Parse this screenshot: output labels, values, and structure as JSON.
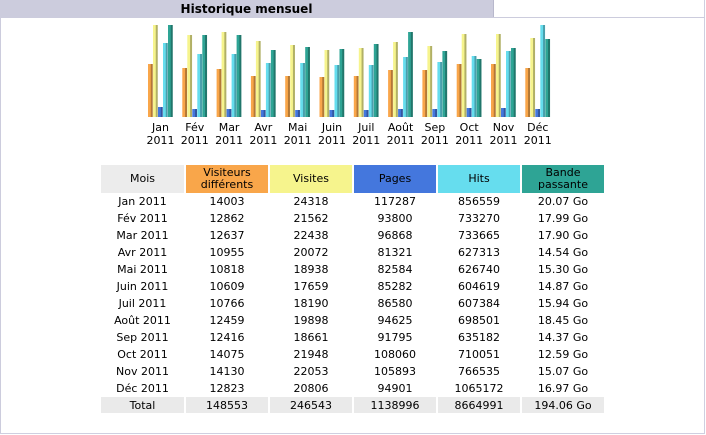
{
  "title": "Historique mensuel",
  "colors": {
    "visitors": "#f9a64a",
    "visits": "#f6f48d",
    "pages": "#4477dd",
    "hits": "#66ddee",
    "bandwidth": "#2ea495",
    "mois_header": "#ececec"
  },
  "table": {
    "headers": {
      "mois": "Mois",
      "visitors_l1": "Visiteurs",
      "visitors_l2": "différents",
      "visits": "Visites",
      "pages": "Pages",
      "hits": "Hits",
      "bandwidth_l1": "Bande",
      "bandwidth_l2": "passante"
    },
    "rows": [
      {
        "mois": "Jan 2011",
        "visitors": "14003",
        "visits": "24318",
        "pages": "117287",
        "hits": "856559",
        "bandwidth": "20.07 Go"
      },
      {
        "mois": "Fév 2011",
        "visitors": "12862",
        "visits": "21562",
        "pages": "93800",
        "hits": "733270",
        "bandwidth": "17.99 Go"
      },
      {
        "mois": "Mar 2011",
        "visitors": "12637",
        "visits": "22438",
        "pages": "96868",
        "hits": "733665",
        "bandwidth": "17.90 Go"
      },
      {
        "mois": "Avr 2011",
        "visitors": "10955",
        "visits": "20072",
        "pages": "81321",
        "hits": "627313",
        "bandwidth": "14.54 Go"
      },
      {
        "mois": "Mai 2011",
        "visitors": "10818",
        "visits": "18938",
        "pages": "82584",
        "hits": "626740",
        "bandwidth": "15.30 Go"
      },
      {
        "mois": "Juin 2011",
        "visitors": "10609",
        "visits": "17659",
        "pages": "85282",
        "hits": "604619",
        "bandwidth": "14.87 Go"
      },
      {
        "mois": "Juil 2011",
        "visitors": "10766",
        "visits": "18190",
        "pages": "86580",
        "hits": "607384",
        "bandwidth": "15.94 Go"
      },
      {
        "mois": "Août 2011",
        "visitors": "12459",
        "visits": "19898",
        "pages": "94625",
        "hits": "698501",
        "bandwidth": "18.45 Go"
      },
      {
        "mois": "Sep 2011",
        "visitors": "12416",
        "visits": "18661",
        "pages": "91795",
        "hits": "635182",
        "bandwidth": "14.37 Go"
      },
      {
        "mois": "Oct 2011",
        "visitors": "14075",
        "visits": "21948",
        "pages": "108060",
        "hits": "710051",
        "bandwidth": "12.59 Go"
      },
      {
        "mois": "Nov 2011",
        "visitors": "14130",
        "visits": "22053",
        "pages": "105893",
        "hits": "766535",
        "bandwidth": "15.07 Go"
      },
      {
        "mois": "Déc 2011",
        "visitors": "12823",
        "visits": "20806",
        "pages": "94901",
        "hits": "1065172",
        "bandwidth": "16.97 Go"
      }
    ],
    "total": {
      "mois": "Total",
      "visitors": "148553",
      "visits": "246543",
      "pages": "1138996",
      "hits": "8664991",
      "bandwidth": "194.06 Go"
    }
  },
  "chart_data": {
    "type": "bar",
    "categories": [
      [
        "Jan",
        "2011"
      ],
      [
        "Fév",
        "2011"
      ],
      [
        "Mar",
        "2011"
      ],
      [
        "Avr",
        "2011"
      ],
      [
        "Mai",
        "2011"
      ],
      [
        "Juin",
        "2011"
      ],
      [
        "Juil",
        "2011"
      ],
      [
        "Août",
        "2011"
      ],
      [
        "Sep",
        "2011"
      ],
      [
        "Oct",
        "2011"
      ],
      [
        "Nov",
        "2011"
      ],
      [
        "Déc",
        "2011"
      ]
    ],
    "series": [
      {
        "key": "visitors",
        "values": [
          14003,
          12862,
          12637,
          10955,
          10818,
          10609,
          10766,
          12459,
          12416,
          14075,
          14130,
          12823
        ]
      },
      {
        "key": "visits",
        "values": [
          24318,
          21562,
          22438,
          20072,
          18938,
          17659,
          18190,
          19898,
          18661,
          21948,
          22053,
          20806
        ]
      },
      {
        "key": "pages",
        "values": [
          117287,
          93800,
          96868,
          81321,
          82584,
          85282,
          86580,
          94625,
          91795,
          108060,
          105893,
          94901
        ]
      },
      {
        "key": "hits",
        "values": [
          856559,
          733270,
          733665,
          627313,
          626740,
          604619,
          607384,
          698501,
          635182,
          710051,
          766535,
          1065172
        ]
      },
      {
        "key": "bandwidth",
        "values": [
          20.07,
          17.99,
          17.9,
          14.54,
          15.3,
          14.87,
          15.94,
          18.45,
          14.37,
          12.59,
          15.07,
          16.97
        ]
      }
    ],
    "scale_groups": [
      [
        "visitors",
        "visits"
      ],
      [
        "pages",
        "hits"
      ],
      [
        "bandwidth"
      ]
    ]
  }
}
